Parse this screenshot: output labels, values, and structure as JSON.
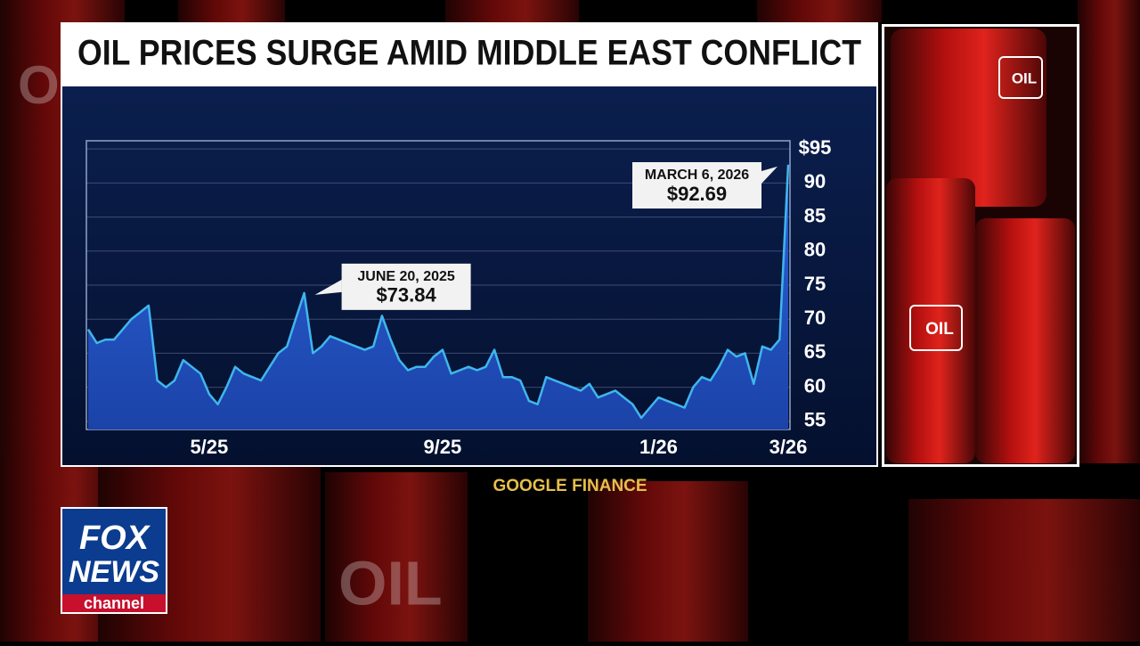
{
  "chart_data": {
    "type": "area",
    "title": "OIL PRICES SURGE AMID MIDDLE EAST CONFLICT",
    "source": "GOOGLE FINANCE",
    "categories": [
      null,
      null,
      null,
      null,
      null,
      null,
      null,
      null,
      null,
      null,
      null,
      null,
      null,
      null,
      "5/25",
      null,
      null,
      null,
      null,
      null,
      null,
      null,
      null,
      null,
      null,
      null,
      null,
      null,
      null,
      null,
      null,
      null,
      null,
      null,
      null,
      null,
      null,
      null,
      null,
      null,
      null,
      "9/25",
      null,
      null,
      null,
      null,
      null,
      null,
      null,
      null,
      null,
      null,
      null,
      null,
      null,
      null,
      null,
      null,
      null,
      null,
      null,
      null,
      null,
      null,
      null,
      null,
      "1/26",
      null,
      null,
      null,
      null,
      null,
      null,
      null,
      null,
      null,
      null,
      null,
      null,
      null,
      null,
      "3/26"
    ],
    "values": [
      68.5,
      66.5,
      67,
      67,
      68.5,
      70,
      71,
      72,
      61,
      60,
      61,
      64,
      63,
      62,
      59,
      57.5,
      60,
      63,
      62,
      61.5,
      61,
      63,
      65,
      66,
      70,
      73.84,
      65,
      66,
      67.5,
      67,
      66.5,
      66,
      65.5,
      66,
      70.5,
      67,
      64,
      62.5,
      63,
      63,
      64.5,
      65.5,
      62,
      62.5,
      63,
      62.5,
      63,
      65.5,
      61.5,
      61.5,
      61,
      58,
      57.5,
      61.5,
      61,
      60.5,
      60,
      59.5,
      60.5,
      58.5,
      59,
      59.5,
      58.5,
      57.5,
      55.5,
      57,
      58.5,
      58,
      57.5,
      57,
      60,
      61.5,
      61,
      63,
      65.5,
      64.5,
      65,
      60.5,
      66,
      65.5,
      67,
      92.69
    ],
    "value_labels": [
      null,
      null,
      null,
      null,
      null,
      null,
      null,
      null,
      null,
      null,
      null,
      null,
      null,
      null,
      null,
      null,
      null,
      null,
      null,
      null,
      null,
      null,
      null,
      null,
      null,
      "$73.84",
      null,
      null,
      null,
      null,
      null,
      null,
      null,
      null,
      null,
      null,
      null,
      null,
      null,
      null,
      null,
      null,
      null,
      null,
      null,
      null,
      null,
      null,
      null,
      null,
      null,
      null,
      null,
      null,
      null,
      null,
      null,
      null,
      null,
      null,
      null,
      null,
      null,
      null,
      null,
      null,
      null,
      null,
      null,
      null,
      null,
      null,
      null,
      null,
      null,
      null,
      null,
      null,
      null,
      null,
      null,
      "$92.69"
    ],
    "annotations": [
      "JUNE 20, 2025",
      "MARCH 6, 2026"
    ],
    "color": "#3fb6ee",
    "ylim": [
      53.8,
      96.2
    ],
    "yticks": [
      {
        "value": 95,
        "label": "$95"
      },
      90,
      85,
      80,
      75,
      70,
      65,
      60,
      55
    ],
    "grid": true
  },
  "logo": {
    "line1": "FOX",
    "line2": "NEWS",
    "line3": "channel"
  },
  "barrel_label": "OIL"
}
